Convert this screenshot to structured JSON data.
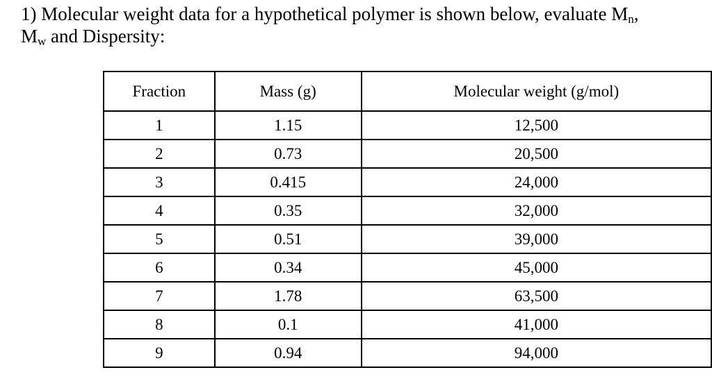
{
  "question": {
    "prefix": "1) Molecular weight data for a hypothetical polymer is shown below, evaluate M",
    "mn_sub": "n",
    "mid": ", ",
    "mw_main": "M",
    "mw_sub": "w",
    "suffix": " and Dispersity:"
  },
  "table": {
    "headers": [
      "Fraction",
      "Mass (g)",
      "Molecular weight (g/mol)"
    ],
    "rows": [
      [
        "1",
        "1.15",
        "12,500"
      ],
      [
        "2",
        "0.73",
        "20,500"
      ],
      [
        "3",
        "0.415",
        "24,000"
      ],
      [
        "4",
        "0.35",
        "32,000"
      ],
      [
        "5",
        "0.51",
        "39,000"
      ],
      [
        "6",
        "0.34",
        "45,000"
      ],
      [
        "7",
        "1.78",
        "63,500"
      ],
      [
        "8",
        "0.1",
        "41,000"
      ],
      [
        "9",
        "0.94",
        "94,000"
      ]
    ]
  }
}
